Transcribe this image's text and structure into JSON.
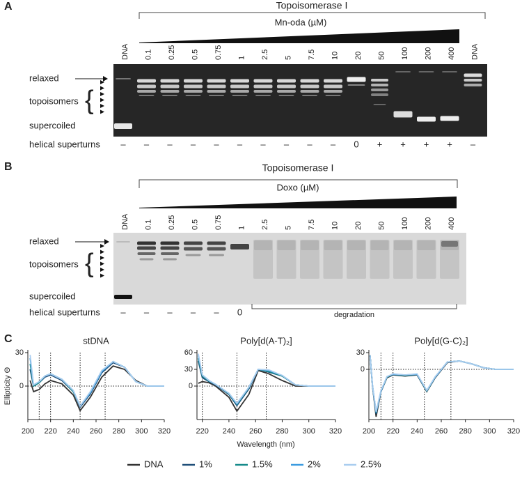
{
  "panel_a": {
    "label": "A",
    "enzyme": "Topoisomerase I",
    "compound": "Mn-oda (µM)",
    "lanes": [
      "DNA",
      "0.1",
      "0.25",
      "0.5",
      "0.75",
      "1",
      "2.5",
      "5",
      "7.5",
      "10",
      "20",
      "50",
      "100",
      "200",
      "400",
      "DNA"
    ],
    "relaxed": "relaxed",
    "topoisomers": "topoisomers",
    "supercoiled": "supercoiled",
    "superturns_label": "helical superturns",
    "superturns": [
      "–",
      "–",
      "–",
      "–",
      "–",
      "–",
      "–",
      "–",
      "–",
      "–",
      "0",
      "+",
      "+",
      "+",
      "+",
      "–"
    ]
  },
  "panel_b": {
    "label": "B",
    "enzyme": "Topoisomerase I",
    "compound": "Doxo (µM)",
    "lanes": [
      "DNA",
      "0.1",
      "0.25",
      "0.5",
      "0.75",
      "1",
      "2.5",
      "5",
      "7.5",
      "10",
      "20",
      "50",
      "100",
      "200",
      "400"
    ],
    "relaxed": "relaxed",
    "topoisomers": "topoisomers",
    "supercoiled": "supercoiled",
    "superturns_label": "helical superturns",
    "superturns": [
      "–",
      "–",
      "–",
      "–",
      "–",
      "0"
    ],
    "degradation": "degradation"
  },
  "panel_c": {
    "label": "C"
  },
  "chart_data": [
    {
      "type": "line",
      "title": "stDNA",
      "ylabel": "Ellipticity Θ",
      "x": [
        202,
        205,
        210,
        215,
        220,
        230,
        240,
        246,
        255,
        265,
        275,
        285,
        295,
        305,
        320
      ],
      "xlim": [
        200,
        320
      ],
      "xticks": [
        200,
        220,
        240,
        260,
        280,
        300,
        320
      ],
      "ylim": [
        -30,
        30
      ],
      "yticks": [
        0,
        30
      ],
      "ref_lines_x": [
        210,
        220,
        246,
        268
      ],
      "series": [
        {
          "name": "DNA",
          "color": "#333333",
          "values": [
            5,
            -5,
            -3,
            2,
            5,
            2,
            -8,
            -22,
            -10,
            8,
            18,
            15,
            5,
            0,
            0
          ]
        },
        {
          "name": "1%",
          "color": "#1f4e79",
          "values": [
            15,
            0,
            3,
            8,
            10,
            5,
            -5,
            -19,
            -7,
            12,
            21,
            17,
            4,
            0,
            0
          ]
        },
        {
          "name": "1.5%",
          "color": "#168a8a",
          "values": [
            20,
            0,
            3,
            9,
            11,
            6,
            -5,
            -18,
            -6,
            13,
            22,
            17,
            4,
            0,
            0
          ]
        },
        {
          "name": "2%",
          "color": "#3b9be0",
          "values": [
            25,
            1,
            4,
            9,
            11,
            6,
            -4,
            -18,
            -6,
            13,
            22,
            17,
            4,
            0,
            0
          ]
        },
        {
          "name": "2.5%",
          "color": "#a9cdef",
          "values": [
            28,
            1,
            4,
            9,
            11,
            6,
            -4,
            -18,
            -5,
            14,
            22,
            17,
            4,
            0,
            0
          ]
        }
      ]
    },
    {
      "type": "line",
      "title": "Poly[d(A-T)₂]",
      "xlabel": "Wavelength (nm)",
      "x": [
        217,
        220,
        225,
        230,
        240,
        246,
        255,
        262,
        270,
        280,
        290,
        300,
        310,
        320
      ],
      "xlim": [
        216,
        320
      ],
      "xticks": [
        220,
        240,
        260,
        280,
        300,
        320
      ],
      "ylim": [
        -60,
        60
      ],
      "yticks": [
        0,
        30,
        60
      ],
      "ref_lines_x": [
        220,
        246,
        268
      ],
      "series": [
        {
          "name": "DNA",
          "color": "#333333",
          "values": [
            5,
            8,
            6,
            0,
            -20,
            -45,
            -15,
            28,
            22,
            10,
            0,
            0,
            0,
            0
          ]
        },
        {
          "name": "1%",
          "color": "#1f4e79",
          "values": [
            45,
            15,
            8,
            2,
            -15,
            -35,
            -5,
            30,
            25,
            18,
            2,
            0,
            0,
            0
          ]
        },
        {
          "name": "1.5%",
          "color": "#168a8a",
          "values": [
            50,
            18,
            9,
            3,
            -14,
            -33,
            -3,
            30,
            26,
            18,
            2,
            0,
            0,
            0
          ]
        },
        {
          "name": "2%",
          "color": "#3b9be0",
          "values": [
            55,
            20,
            10,
            3,
            -13,
            -32,
            -2,
            30,
            28,
            19,
            2,
            0,
            0,
            0
          ]
        },
        {
          "name": "2.5%",
          "color": "#a9cdef",
          "values": [
            58,
            20,
            10,
            3,
            -13,
            -31,
            -2,
            30,
            29,
            19,
            2,
            0,
            0,
            0
          ]
        }
      ]
    },
    {
      "type": "line",
      "title": "Poly[d(G-C)₂]",
      "x": [
        201,
        203,
        206,
        210,
        215,
        220,
        230,
        240,
        248,
        255,
        265,
        275,
        285,
        295,
        305,
        320
      ],
      "xlim": [
        200,
        320
      ],
      "xticks": [
        200,
        220,
        240,
        260,
        280,
        300,
        320
      ],
      "ylim": [
        -90,
        30
      ],
      "yticks": [
        0,
        30
      ],
      "ref_lines_x": [
        210,
        220,
        246,
        268
      ],
      "series": [
        {
          "name": "DNA",
          "color": "#333333",
          "values": [
            25,
            -30,
            -85,
            -40,
            -15,
            -10,
            -12,
            -10,
            -40,
            -15,
            12,
            15,
            10,
            3,
            0,
            0
          ]
        },
        {
          "name": "1%",
          "color": "#1f4e79",
          "values": [
            25,
            -30,
            -80,
            -40,
            -14,
            -9,
            -11,
            -9,
            -39,
            -14,
            13,
            15,
            10,
            3,
            0,
            0
          ]
        },
        {
          "name": "1.5%",
          "color": "#168a8a",
          "values": [
            25,
            -29,
            -78,
            -39,
            -14,
            -9,
            -11,
            -9,
            -39,
            -14,
            13,
            15,
            10,
            3,
            0,
            0
          ]
        },
        {
          "name": "2%",
          "color": "#3b9be0",
          "values": [
            25,
            -29,
            -77,
            -39,
            -13,
            -9,
            -10,
            -9,
            -38,
            -14,
            13,
            15,
            10,
            3,
            0,
            0
          ]
        },
        {
          "name": "2.5%",
          "color": "#a9cdef",
          "values": [
            25,
            -28,
            -76,
            -38,
            -13,
            -8,
            -10,
            -8,
            -38,
            -13,
            13,
            15,
            10,
            3,
            0,
            0
          ]
        }
      ]
    }
  ]
}
